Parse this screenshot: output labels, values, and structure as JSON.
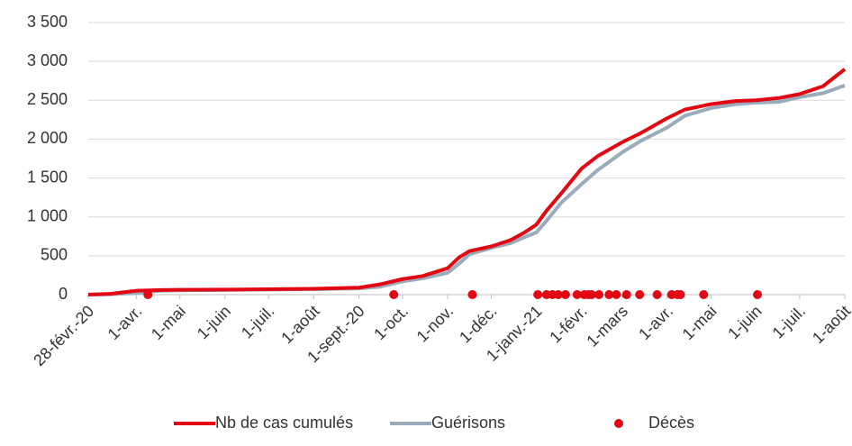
{
  "chart_data": {
    "type": "line",
    "x": [
      0,
      15,
      33,
      50,
      63,
      94,
      124,
      155,
      186,
      200,
      216,
      230,
      247,
      255,
      262,
      277,
      290,
      300,
      308,
      315,
      325,
      339,
      350,
      367,
      380,
      398,
      410,
      428,
      445,
      459,
      475,
      489,
      505,
      520
    ],
    "series": [
      {
        "name": "Nb de cas cumulés",
        "color": "#e30613",
        "values": [
          0,
          10,
          50,
          60,
          62,
          65,
          70,
          75,
          90,
          130,
          200,
          240,
          340,
          480,
          560,
          620,
          700,
          800,
          900,
          1080,
          1300,
          1620,
          1780,
          1960,
          2080,
          2270,
          2380,
          2450,
          2490,
          2500,
          2530,
          2580,
          2680,
          2900
        ]
      },
      {
        "name": "Guérisons",
        "color": "#9aabbb",
        "values": [
          0,
          5,
          20,
          50,
          55,
          60,
          65,
          70,
          80,
          100,
          170,
          210,
          280,
          400,
          520,
          600,
          660,
          740,
          800,
          950,
          1180,
          1420,
          1600,
          1830,
          1980,
          2150,
          2300,
          2400,
          2450,
          2470,
          2480,
          2540,
          2590,
          2690
        ]
      }
    ],
    "points": {
      "name": "Décès",
      "color": "#e30613",
      "x": [
        41,
        210,
        264,
        309,
        315,
        319,
        323,
        328,
        336,
        341,
        344,
        346,
        351,
        358,
        363,
        370,
        379,
        391,
        401,
        405,
        407,
        423,
        460
      ],
      "values": [
        0,
        0,
        0,
        0,
        0,
        0,
        0,
        0,
        0,
        0,
        0,
        0,
        0,
        0,
        0,
        0,
        0,
        0,
        0,
        0,
        0,
        0,
        0
      ]
    },
    "xlim": [
      0,
      520
    ],
    "xticks": [
      {
        "value": 0,
        "label": "28-févr.-20"
      },
      {
        "value": 33,
        "label": "1-avr."
      },
      {
        "value": 63,
        "label": "1-mai"
      },
      {
        "value": 94,
        "label": "1-juin"
      },
      {
        "value": 124,
        "label": "1-juil."
      },
      {
        "value": 155,
        "label": "1-août"
      },
      {
        "value": 186,
        "label": "1-sept.-20"
      },
      {
        "value": 216,
        "label": "1-oct."
      },
      {
        "value": 247,
        "label": "1-nov."
      },
      {
        "value": 277,
        "label": "1-déc."
      },
      {
        "value": 308,
        "label": "1-janv.-21"
      },
      {
        "value": 339,
        "label": "1-févr."
      },
      {
        "value": 367,
        "label": "1-mars"
      },
      {
        "value": 398,
        "label": "1-avr."
      },
      {
        "value": 428,
        "label": "1-mai"
      },
      {
        "value": 459,
        "label": "1-juin"
      },
      {
        "value": 489,
        "label": "1-juil."
      },
      {
        "value": 520,
        "label": "1-août"
      }
    ],
    "ylim": [
      0,
      3500
    ],
    "yticks": [
      {
        "value": 0,
        "label": "0"
      },
      {
        "value": 500,
        "label": "500"
      },
      {
        "value": 1000,
        "label": "1 000"
      },
      {
        "value": 1500,
        "label": "1 500"
      },
      {
        "value": 2000,
        "label": "2 000"
      },
      {
        "value": 2500,
        "label": "2 500"
      },
      {
        "value": 3000,
        "label": "3 000"
      },
      {
        "value": 3500,
        "label": "3 500"
      }
    ],
    "grid": true,
    "legend": "bottom"
  }
}
